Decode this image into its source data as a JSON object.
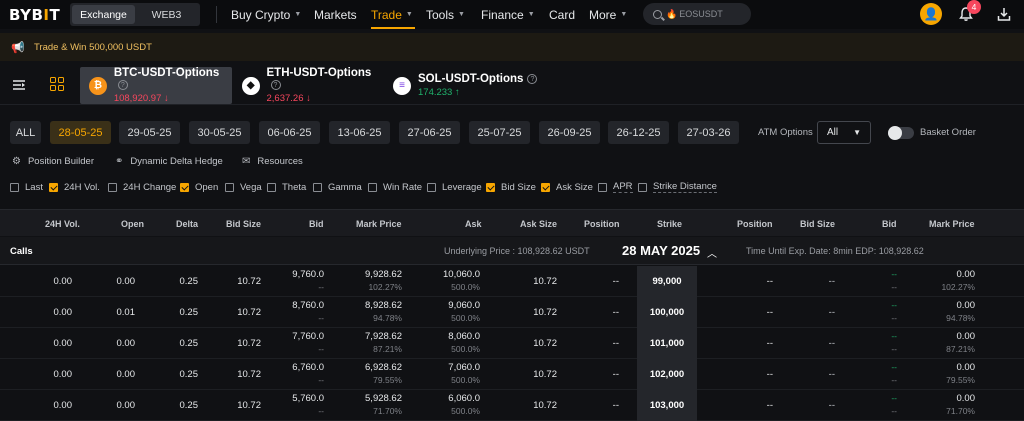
{
  "nav": {
    "logo_main": "BYB",
    "logo_bar": "I",
    "logo_end": "T",
    "mode_exchange": "Exchange",
    "mode_web3": "WEB3",
    "items": [
      "Buy Crypto",
      "Markets",
      "Trade",
      "Tools",
      "Finance",
      "Card",
      "More"
    ],
    "search_placeholder": "EOSUSDT",
    "notification_count": "4"
  },
  "banner": {
    "text": "Trade & Win 500,000 USDT"
  },
  "symbols": [
    {
      "name": "BTC-USDT-Options",
      "price": "108,920.97",
      "direction": "down",
      "coin": "B",
      "color": "#f7931a"
    },
    {
      "name": "ETH-USDT-Options",
      "price": "2,637.26",
      "direction": "down",
      "coin": "♦",
      "color": "#ffffff"
    },
    {
      "name": "SOL-USDT-Options",
      "price": "174.233",
      "direction": "up",
      "coin": "≡",
      "color": "#ffffff"
    }
  ],
  "dates": [
    "ALL",
    "28-05-25",
    "29-05-25",
    "30-05-25",
    "06-06-25",
    "13-06-25",
    "27-06-25",
    "25-07-25",
    "26-09-25",
    "26-12-25",
    "27-03-26"
  ],
  "active_date": "28-05-25",
  "atm": {
    "label": "ATM Options",
    "value": "All"
  },
  "basket_label": "Basket Order",
  "tools": [
    "Position Builder",
    "Dynamic Delta Hedge",
    "Resources"
  ],
  "columns_toggle": [
    {
      "label": "Last",
      "checked": false
    },
    {
      "label": "24H Vol.",
      "checked": true
    },
    {
      "label": "24H Change",
      "checked": false
    },
    {
      "label": "Open",
      "checked": true
    },
    {
      "label": "Vega",
      "checked": false
    },
    {
      "label": "Theta",
      "checked": false
    },
    {
      "label": "Gamma",
      "checked": false
    },
    {
      "label": "Win Rate",
      "checked": false
    },
    {
      "label": "Leverage",
      "checked": false
    },
    {
      "label": "Bid Size",
      "checked": true
    },
    {
      "label": "Ask Size",
      "checked": true
    },
    {
      "label": "APR",
      "checked": false
    },
    {
      "label": "Strike Distance",
      "checked": false
    }
  ],
  "table_headers": [
    "24H Vol.",
    "Open",
    "Delta",
    "Bid Size",
    "Bid",
    "Mark Price",
    "Ask",
    "Ask Size",
    "Position",
    "Strike",
    "Position",
    "Bid Size",
    "Bid",
    "Mark Price"
  ],
  "calls_bar": {
    "label": "Calls",
    "underlying": "Underlying Price : 108,928.62 USDT",
    "expiry": "28 MAY 2025",
    "time_until": "Time Until Exp. Date:   8min  EDP: 108,928.62"
  },
  "rows": [
    {
      "vol": "0.00",
      "open": "0.00",
      "delta": "0.25",
      "bid_size": "10.72",
      "bid": "9,760.0",
      "mark": "9,928.62",
      "mark_iv": "102.27%",
      "ask": "10,060.0",
      "ask_iv": "500.0%",
      "ask_size": "10.72",
      "position": "--",
      "strike": "99,000",
      "p_position": "--",
      "p_bid_size": "--",
      "p_bid": "--",
      "p_mark": "0.00",
      "p_mark_iv": "102.27%"
    },
    {
      "vol": "0.00",
      "open": "0.01",
      "delta": "0.25",
      "bid_size": "10.72",
      "bid": "8,760.0",
      "mark": "8,928.62",
      "mark_iv": "94.78%",
      "ask": "9,060.0",
      "ask_iv": "500.0%",
      "ask_size": "10.72",
      "position": "--",
      "strike": "100,000",
      "p_position": "--",
      "p_bid_size": "--",
      "p_bid": "--",
      "p_mark": "0.00",
      "p_mark_iv": "94.78%"
    },
    {
      "vol": "0.00",
      "open": "0.00",
      "delta": "0.25",
      "bid_size": "10.72",
      "bid": "7,760.0",
      "mark": "7,928.62",
      "mark_iv": "87.21%",
      "ask": "8,060.0",
      "ask_iv": "500.0%",
      "ask_size": "10.72",
      "position": "--",
      "strike": "101,000",
      "p_position": "--",
      "p_bid_size": "--",
      "p_bid": "--",
      "p_mark": "0.00",
      "p_mark_iv": "87.21%"
    },
    {
      "vol": "0.00",
      "open": "0.00",
      "delta": "0.25",
      "bid_size": "10.72",
      "bid": "6,760.0",
      "mark": "6,928.62",
      "mark_iv": "79.55%",
      "ask": "7,060.0",
      "ask_iv": "500.0%",
      "ask_size": "10.72",
      "position": "--",
      "strike": "102,000",
      "p_position": "--",
      "p_bid_size": "--",
      "p_bid": "--",
      "p_mark": "0.00",
      "p_mark_iv": "79.55%"
    },
    {
      "vol": "0.00",
      "open": "0.00",
      "delta": "0.25",
      "bid_size": "10.72",
      "bid": "5,760.0",
      "mark": "5,928.62",
      "mark_iv": "71.70%",
      "ask": "6,060.0",
      "ask_iv": "500.0%",
      "ask_size": "10.72",
      "position": "--",
      "strike": "103,000",
      "p_position": "--",
      "p_bid_size": "--",
      "p_bid": "--",
      "p_mark": "0.00",
      "p_mark_iv": "71.70%"
    }
  ]
}
